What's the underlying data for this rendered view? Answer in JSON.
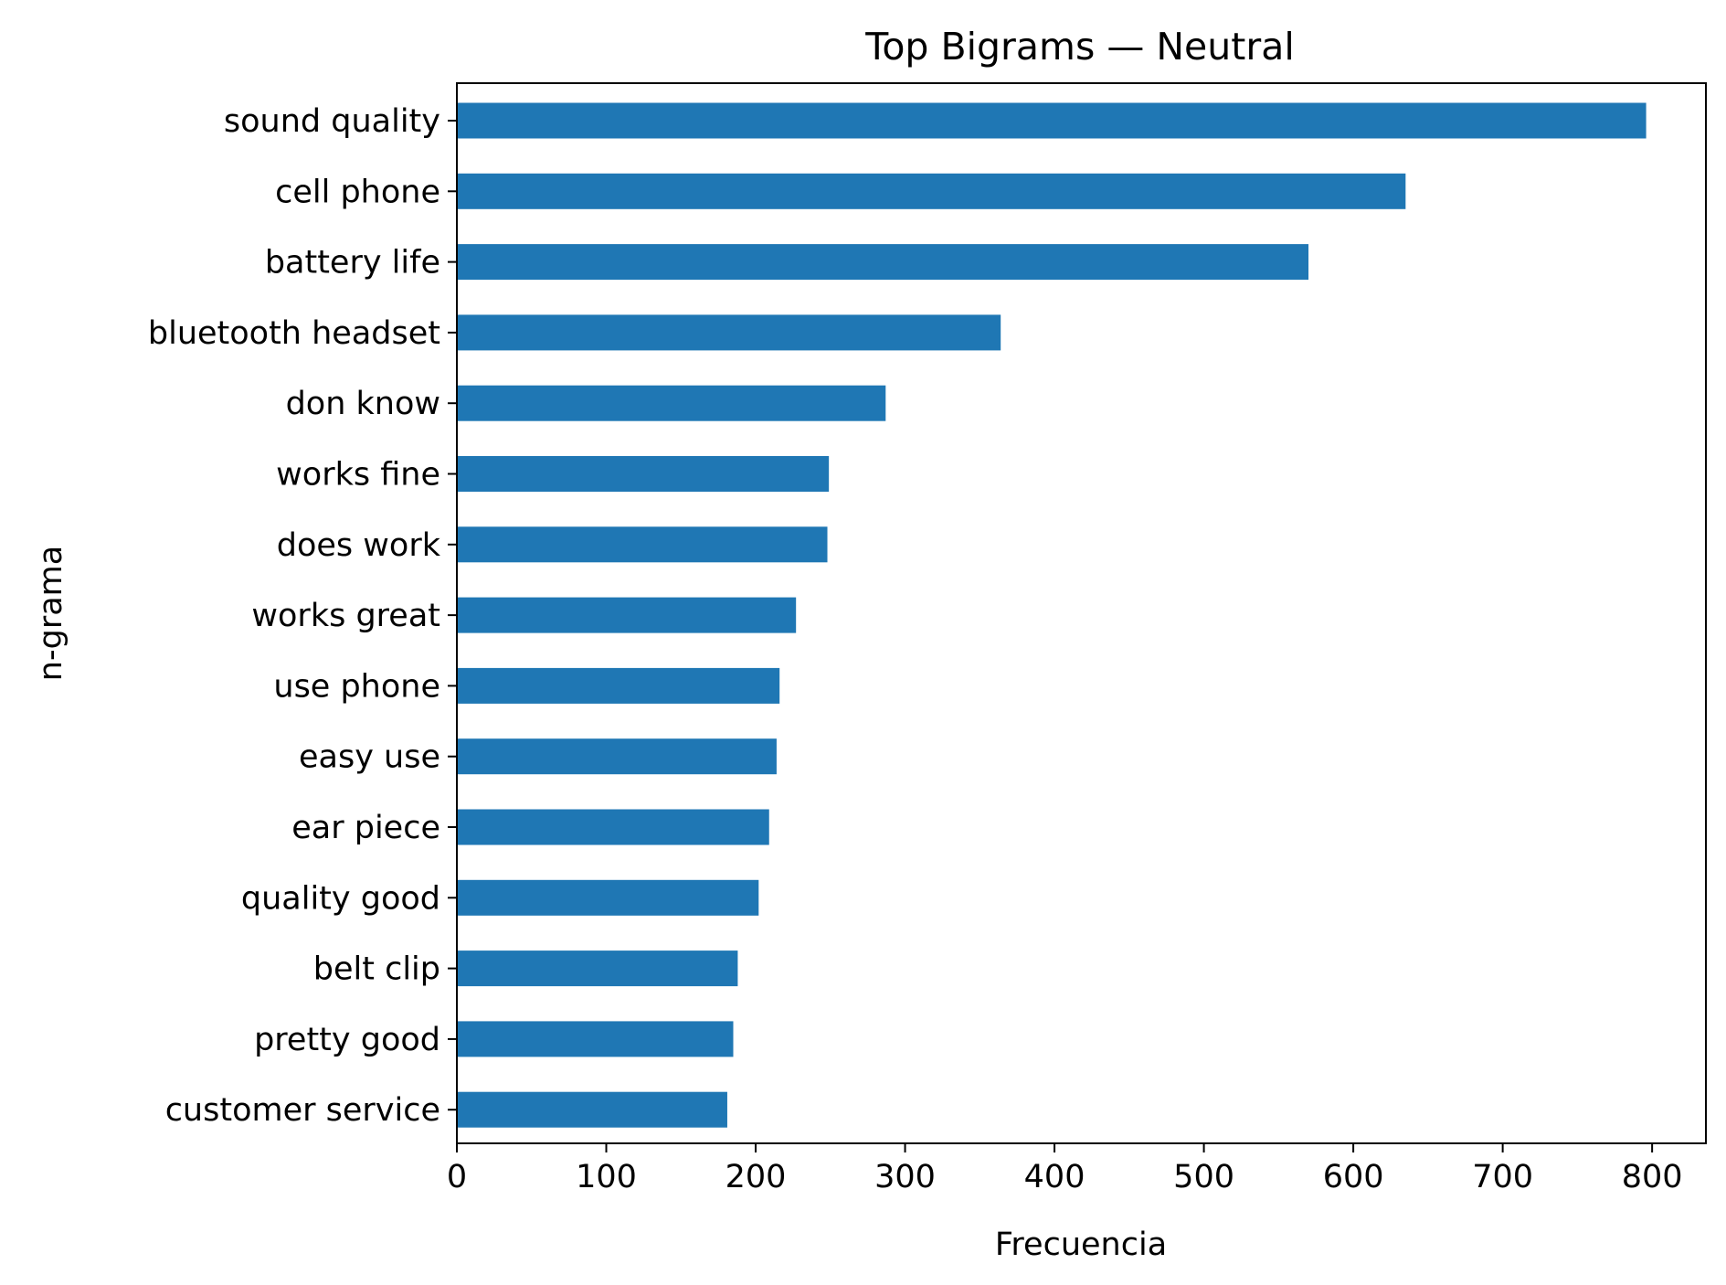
{
  "chart_data": {
    "type": "bar",
    "orientation": "horizontal",
    "title": "Top Bigrams — Neutral",
    "xlabel": "Frecuencia",
    "ylabel": "n-grama",
    "xlim": [
      0,
      836
    ],
    "xticks": [
      0,
      100,
      200,
      300,
      400,
      500,
      600,
      700,
      800
    ],
    "grid": false,
    "bar_color": "#1f77b4",
    "categories": [
      "sound quality",
      "cell phone",
      "battery life",
      "bluetooth headset",
      "don know",
      "works fine",
      "does work",
      "works great",
      "use phone",
      "easy use",
      "ear piece",
      "quality good",
      "belt clip",
      "pretty good",
      "customer service"
    ],
    "values": [
      796,
      635,
      570,
      364,
      287,
      249,
      248,
      227,
      216,
      214,
      209,
      202,
      188,
      185,
      181
    ]
  }
}
